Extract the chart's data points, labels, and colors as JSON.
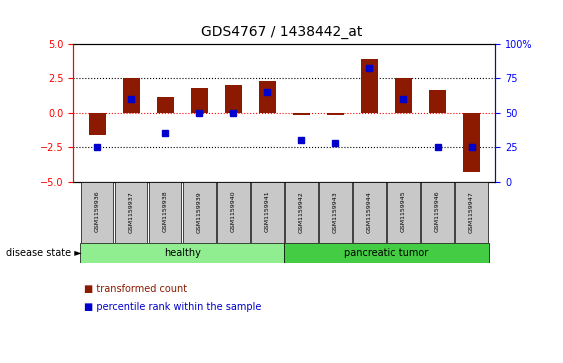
{
  "title": "GDS4767 / 1438442_at",
  "samples": [
    "GSM1159936",
    "GSM1159937",
    "GSM1159938",
    "GSM1159939",
    "GSM1159940",
    "GSM1159941",
    "GSM1159942",
    "GSM1159943",
    "GSM1159944",
    "GSM1159945",
    "GSM1159946",
    "GSM1159947"
  ],
  "transformed_count": [
    -1.6,
    2.5,
    1.1,
    1.8,
    2.0,
    2.3,
    -0.2,
    -0.15,
    3.9,
    2.5,
    1.6,
    -4.3
  ],
  "percentile_rank": [
    25,
    60,
    35,
    50,
    50,
    65,
    30,
    28,
    82,
    60,
    25,
    25
  ],
  "groups": [
    {
      "label": "healthy",
      "start": 0,
      "end": 6,
      "color": "#90EE90"
    },
    {
      "label": "pancreatic tumor",
      "start": 6,
      "end": 12,
      "color": "#44CC44"
    }
  ],
  "bar_color": "#8B1A00",
  "percentile_color": "#0000CD",
  "ylim_left": [
    -5,
    5
  ],
  "ylim_right": [
    0,
    100
  ],
  "yticks_left": [
    -5,
    -2.5,
    0,
    2.5,
    5
  ],
  "yticks_right": [
    0,
    25,
    50,
    75,
    100
  ],
  "ytick_labels_right": [
    "0",
    "25",
    "50",
    "75",
    "100%"
  ],
  "bg_color": "#FFFFFF",
  "plot_bg_color": "#FFFFFF",
  "legend_items": [
    "transformed count",
    "percentile rank within the sample"
  ],
  "disease_state_label": "disease state"
}
